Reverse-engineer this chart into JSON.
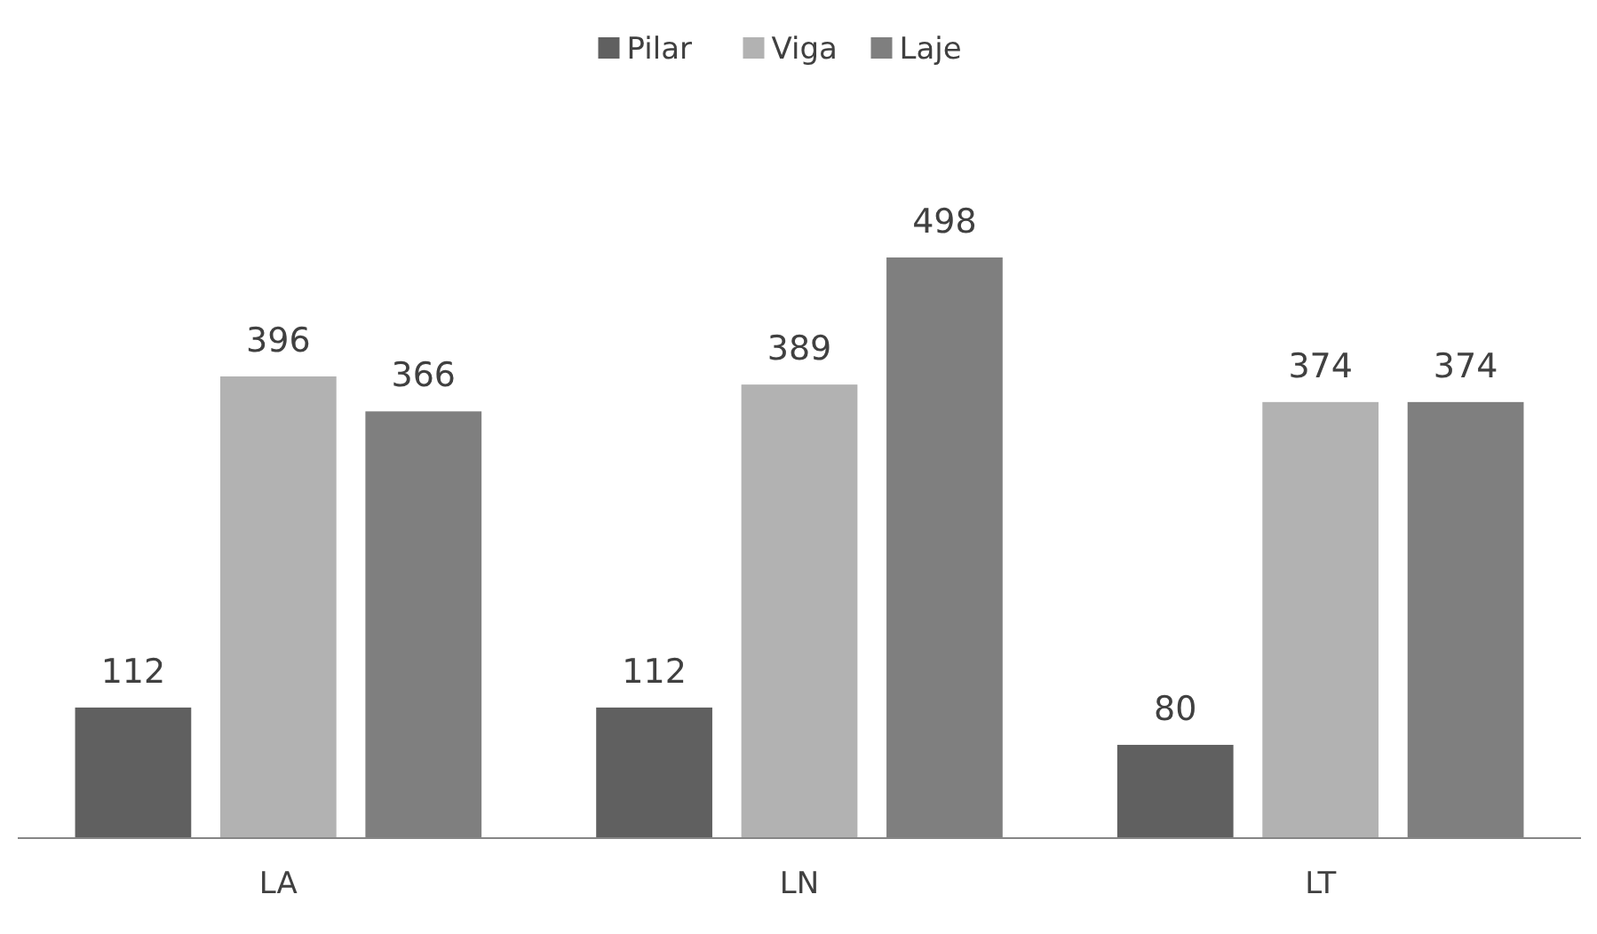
{
  "chart_data": {
    "type": "bar",
    "categories": [
      "LA",
      "LN",
      "LT"
    ],
    "series": [
      {
        "name": "Pilar",
        "color": "#606060",
        "values": [
          112,
          112,
          80
        ]
      },
      {
        "name": "Viga",
        "color": "#b2b2b2",
        "values": [
          396,
          389,
          374
        ]
      },
      {
        "name": "Laje",
        "color": "#7f7f7f",
        "values": [
          366,
          498,
          374
        ]
      }
    ],
    "data_labels": true,
    "legend": "top"
  }
}
